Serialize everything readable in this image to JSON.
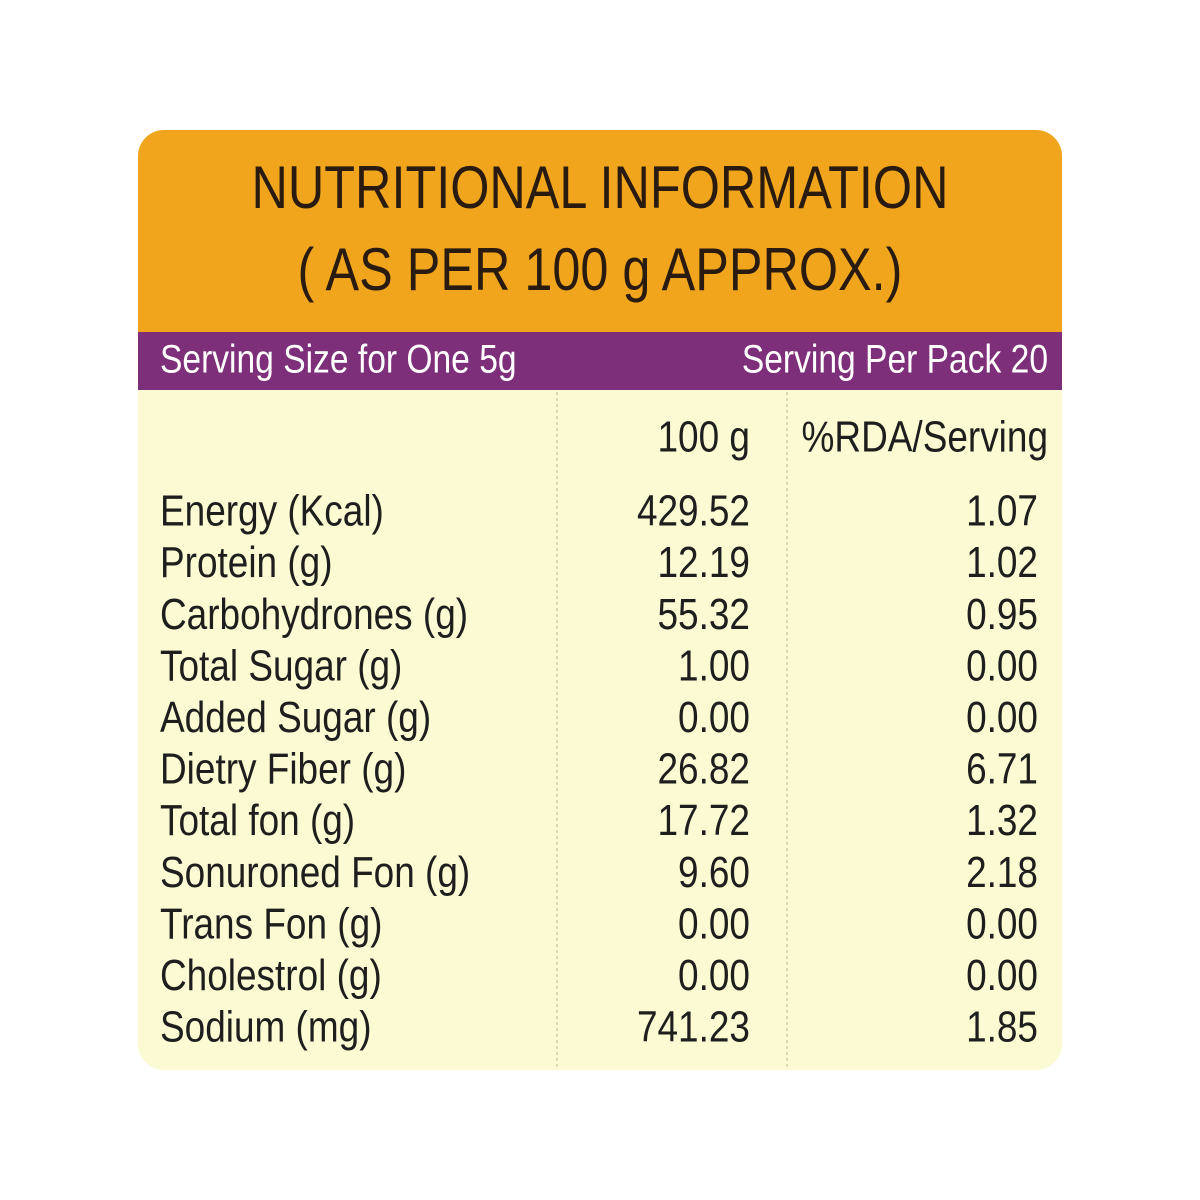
{
  "header": {
    "title_line1": "NUTRITIONAL INFORMATION",
    "title_line2": "( AS PER 100 g APPROX.)"
  },
  "serving": {
    "size": "Serving Size for One 5g",
    "per_pack": "Serving Per Pack 20"
  },
  "table": {
    "columns": [
      "100 g",
      "%RDA/Serving"
    ],
    "rows": [
      [
        "Energy (Kcal)",
        "429.52",
        "1.07"
      ],
      [
        "Protein (g)",
        "12.19",
        "1.02"
      ],
      [
        "Carbohydrones (g)",
        "55.32",
        "0.95"
      ],
      [
        "Total Sugar (g)",
        "1.00",
        "0.00"
      ],
      [
        "Added Sugar (g)",
        "0.00",
        "0.00"
      ],
      [
        "Dietry Fiber (g)",
        "26.82",
        "6.71"
      ],
      [
        "Total fon (g)",
        "17.72",
        "1.32"
      ],
      [
        "Sonuroned Fon (g)",
        "9.60",
        "2.18"
      ],
      [
        "Trans Fon (g)",
        "0.00",
        "0.00"
      ],
      [
        "Cholestrol (g)",
        "0.00",
        "0.00"
      ],
      [
        "Sodium (mg)",
        "741.23",
        "1.85"
      ]
    ]
  }
}
